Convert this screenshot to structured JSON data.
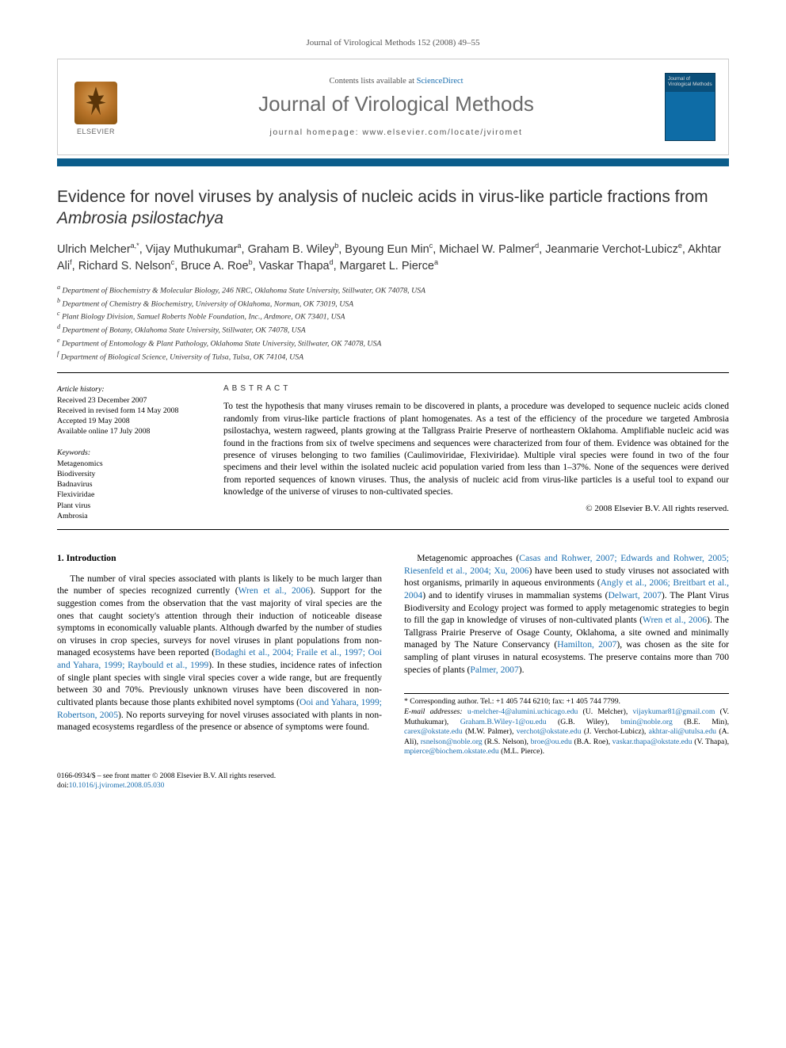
{
  "running_head": "Journal of Virological Methods 152 (2008) 49–55",
  "header": {
    "contents_prefix": "Contents lists available at ",
    "contents_link": "ScienceDirect",
    "journal_name": "Journal of Virological Methods",
    "homepage_prefix": "journal homepage: ",
    "homepage_url": "www.elsevier.com/locate/jviromet",
    "elsevier_label": "ELSEVIER",
    "cover_text": "Journal of Virological Methods"
  },
  "title_pre": "Evidence for novel viruses by analysis of nucleic acids in virus-like particle fractions from ",
  "title_em": "Ambrosia psilostachya",
  "authors": [
    {
      "name": "Ulrich Melcher",
      "marks": "a,*"
    },
    {
      "name": "Vijay Muthukumar",
      "marks": "a"
    },
    {
      "name": "Graham B. Wiley",
      "marks": "b"
    },
    {
      "name": "Byoung Eun Min",
      "marks": "c"
    },
    {
      "name": "Michael W. Palmer",
      "marks": "d"
    },
    {
      "name": "Jeanmarie Verchot-Lubicz",
      "marks": "e"
    },
    {
      "name": "Akhtar Ali",
      "marks": "f"
    },
    {
      "name": "Richard S. Nelson",
      "marks": "c"
    },
    {
      "name": "Bruce A. Roe",
      "marks": "b"
    },
    {
      "name": "Vaskar Thapa",
      "marks": "d"
    },
    {
      "name": "Margaret L. Pierce",
      "marks": "a"
    }
  ],
  "affiliations": [
    {
      "mark": "a",
      "text": "Department of Biochemistry & Molecular Biology, 246 NRC, Oklahoma State University, Stillwater, OK 74078, USA"
    },
    {
      "mark": "b",
      "text": "Department of Chemistry & Biochemistry, University of Oklahoma, Norman, OK 73019, USA"
    },
    {
      "mark": "c",
      "text": "Plant Biology Division, Samuel Roberts Noble Foundation, Inc., Ardmore, OK 73401, USA"
    },
    {
      "mark": "d",
      "text": "Department of Botany, Oklahoma State University, Stillwater, OK 74078, USA"
    },
    {
      "mark": "e",
      "text": "Department of Entomology & Plant Pathology, Oklahoma State University, Stillwater, OK 74078, USA"
    },
    {
      "mark": "f",
      "text": "Department of Biological Science, University of Tulsa, Tulsa, OK 74104, USA"
    }
  ],
  "history": {
    "label": "Article history:",
    "received": "Received 23 December 2007",
    "revised": "Received in revised form 14 May 2008",
    "accepted": "Accepted 19 May 2008",
    "online": "Available online 17 July 2008"
  },
  "keywords": {
    "label": "Keywords:",
    "items": [
      "Metagenomics",
      "Biodiversity",
      "Badnavirus",
      "Flexiviridae",
      "Plant virus",
      "Ambrosia"
    ]
  },
  "abstract": {
    "head": "ABSTRACT",
    "text": "To test the hypothesis that many viruses remain to be discovered in plants, a procedure was developed to sequence nucleic acids cloned randomly from virus-like particle fractions of plant homogenates. As a test of the efficiency of the procedure we targeted Ambrosia psilostachya, western ragweed, plants growing at the Tallgrass Prairie Preserve of northeastern Oklahoma. Amplifiable nucleic acid was found in the fractions from six of twelve specimens and sequences were characterized from four of them. Evidence was obtained for the presence of viruses belonging to two families (Caulimoviridae, Flexiviridae). Multiple viral species were found in two of the four specimens and their level within the isolated nucleic acid population varied from less than 1–37%. None of the sequences were derived from reported sequences of known viruses. Thus, the analysis of nucleic acid from virus-like particles is a useful tool to expand our knowledge of the universe of viruses to non-cultivated species.",
    "copyright": "© 2008 Elsevier B.V. All rights reserved."
  },
  "section1": {
    "heading": "1. Introduction",
    "para1_a": "The number of viral species associated with plants is likely to be much larger than the number of species recognized currently (",
    "para1_link1": "Wren et al., 2006",
    "para1_b": "). Support for the suggestion comes from the observation that the vast majority of viral species are the ones that caught society's attention through their induction of noticeable disease symptoms in economically valuable plants. Although dwarfed by the number of studies on viruses in crop species, surveys for novel viruses in plant populations from non-managed ecosystems have been reported (",
    "para1_link2": "Bodaghi et al., 2004; Fraile et al., 1997; Ooi and Yahara, 1999; Raybould et al., 1999",
    "para1_c": "). In these studies, inci",
    "para1_d": "dence rates of infection of single plant species with single viral species cover a wide range, but are frequently between 30 and 70%. Previously unknown viruses have been discovered in non-cultivated plants because those plants exhibited novel symptoms (",
    "para1_link3": "Ooi and Yahara, 1999; Robertson, 2005",
    "para1_e": "). No reports surveying for novel viruses associated with plants in non-managed ecosystems regardless of the presence or absence of symptoms were found.",
    "para2_a": "Metagenomic approaches (",
    "para2_link1": "Casas and Rohwer, 2007; Edwards and Rohwer, 2005; Riesenfeld et al., 2004; Xu, 2006",
    "para2_b": ") have been used to study viruses not associated with host organisms, primarily in aqueous environments (",
    "para2_link2": "Angly et al., 2006; Breitbart et al., 2004",
    "para2_c": ") and to identify viruses in mammalian systems (",
    "para2_link3": "Delwart, 2007",
    "para2_d": "). The Plant Virus Biodiversity and Ecology project was formed to apply metagenomic strategies to begin to fill the gap in knowledge of viruses of non-cultivated plants (",
    "para2_link4": "Wren et al., 2006",
    "para2_e": "). The Tallgrass Prairie Preserve of Osage County, Oklahoma, a site owned and minimally managed by The Nature Conservancy (",
    "para2_link5": "Hamilton, 2007",
    "para2_f": "), was chosen as the site for sampling of plant viruses in natural ecosystems. The preserve contains more than 700 species of plants (",
    "para2_link6": "Palmer, 2007",
    "para2_g": ")."
  },
  "footnote": {
    "corr": "* Corresponding author. Tel.: +1 405 744 6210; fax: +1 405 744 7799.",
    "email_label": "E-mail addresses: ",
    "emails": [
      {
        "addr": "u-melcher-4@alumini.uchicago.edu",
        "who": " (U. Melcher), "
      },
      {
        "addr": "vijaykumar81@gmail.com",
        "who": " (V. Muthukumar), "
      },
      {
        "addr": "Graham.B.Wiley-1@ou.edu",
        "who": " (G.B. Wiley), "
      },
      {
        "addr": "bmin@noble.org",
        "who": " (B.E. Min), "
      },
      {
        "addr": "carex@okstate.edu",
        "who": " (M.W. Palmer), "
      },
      {
        "addr": "verchot@okstate.edu",
        "who": " (J. Verchot-Lubicz), "
      },
      {
        "addr": "akhtar-ali@utulsa.edu",
        "who": " (A. Ali), "
      },
      {
        "addr": "rsnelson@noble.org",
        "who": " (R.S. Nelson), "
      },
      {
        "addr": "broe@ou.edu",
        "who": " (B.A. Roe), "
      },
      {
        "addr": "vaskar.thapa@okstate.edu",
        "who": " (V. Thapa), "
      },
      {
        "addr": "mpierce@biochem.okstate.edu",
        "who": " (M.L. Pierce)."
      }
    ]
  },
  "footer": {
    "line1": "0166-0934/$ – see front matter © 2008 Elsevier B.V. All rights reserved.",
    "doi_prefix": "doi:",
    "doi": "10.1016/j.jviromet.2008.05.030"
  }
}
